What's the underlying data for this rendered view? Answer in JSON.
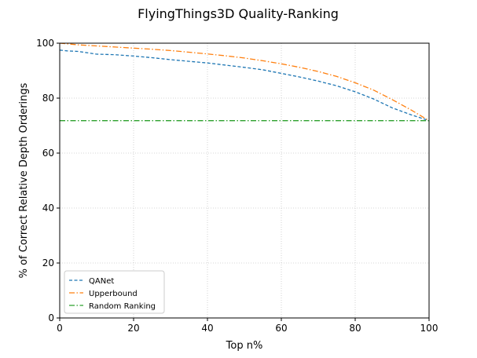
{
  "chart_data": {
    "type": "line",
    "title": "FlyingThings3D Quality-Ranking",
    "xlabel": "Top n%",
    "ylabel": "% of Correct Relative Depth Orderings",
    "xlim": [
      0,
      100
    ],
    "ylim": [
      0,
      100
    ],
    "xticks": [
      "0",
      "20",
      "40",
      "60",
      "80",
      "100"
    ],
    "yticks": [
      "0",
      "20",
      "40",
      "60",
      "80",
      "100"
    ],
    "grid": true,
    "legend_position": "lower-left",
    "series": [
      {
        "name": "QANet",
        "color": "#1f77b4",
        "linestyle": "dashed",
        "x": [
          0,
          2,
          5,
          10,
          15,
          20,
          25,
          30,
          35,
          40,
          45,
          50,
          55,
          60,
          65,
          70,
          75,
          80,
          85,
          90,
          95,
          100
        ],
        "y": [
          97.5,
          97.2,
          97.0,
          96.0,
          95.8,
          95.3,
          94.7,
          94.0,
          93.4,
          92.8,
          92.0,
          91.2,
          90.3,
          89.0,
          87.7,
          86.2,
          84.5,
          82.3,
          79.7,
          76.5,
          74.0,
          71.8
        ]
      },
      {
        "name": "Upperbound",
        "color": "#ff7f0e",
        "linestyle": "dashdot",
        "x": [
          0,
          5,
          10,
          15,
          20,
          25,
          30,
          35,
          40,
          45,
          50,
          55,
          60,
          65,
          70,
          75,
          80,
          85,
          90,
          95,
          100
        ],
        "y": [
          100,
          99.4,
          99.0,
          98.6,
          98.2,
          97.8,
          97.3,
          96.7,
          96.1,
          95.4,
          94.6,
          93.6,
          92.5,
          91.2,
          89.7,
          87.9,
          85.6,
          82.9,
          79.5,
          75.8,
          71.8
        ]
      },
      {
        "name": "Random Ranking",
        "color": "#2ca02c",
        "linestyle": "dashdot",
        "x": [
          0,
          100
        ],
        "y": [
          71.8,
          71.8
        ]
      }
    ]
  }
}
